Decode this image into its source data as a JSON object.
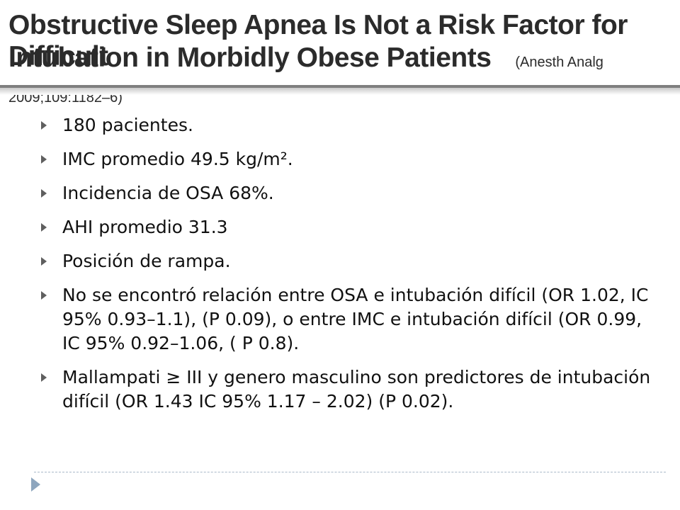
{
  "title": {
    "line1": "Obstructive Sleep Apnea Is Not a Risk Factor for Difficult",
    "line2": "Intubation in Morbidly Obese Patients",
    "citation": "(Anesth Analg 2009;109:1182–6)"
  },
  "bullets": [
    {
      "text": "180 pacientes."
    },
    {
      "text": "IMC promedio 49.5 kg/m²."
    },
    {
      "text": "Incidencia de OSA 68%."
    },
    {
      "text": "AHI promedio 31.3"
    },
    {
      "text": "Posición de rampa."
    },
    {
      "text": "No se encontró relación entre OSA e intubación difícil (OR 1.02, IC 95% 0.93–1.1),  (P  0.09), o entre IMC e intubación difícil (OR 0.99, IC 95% 0.92–1.06, ( P  0.8)."
    },
    {
      "text": "Mallampati ≥ III y  genero masculino son predictores de intubación difícil (OR 1.43 IC 95% 1.17 – 2.02)    (P  0.02)."
    }
  ],
  "colors": {
    "title_text": "#2b2b2b",
    "rule": "#7f7f7f",
    "bullet_marker": "#5f5f5f",
    "footer_accent": "#8ea6be"
  },
  "icons": {
    "bullet": "triangle-right-icon",
    "footer": "chevron-right-icon"
  }
}
